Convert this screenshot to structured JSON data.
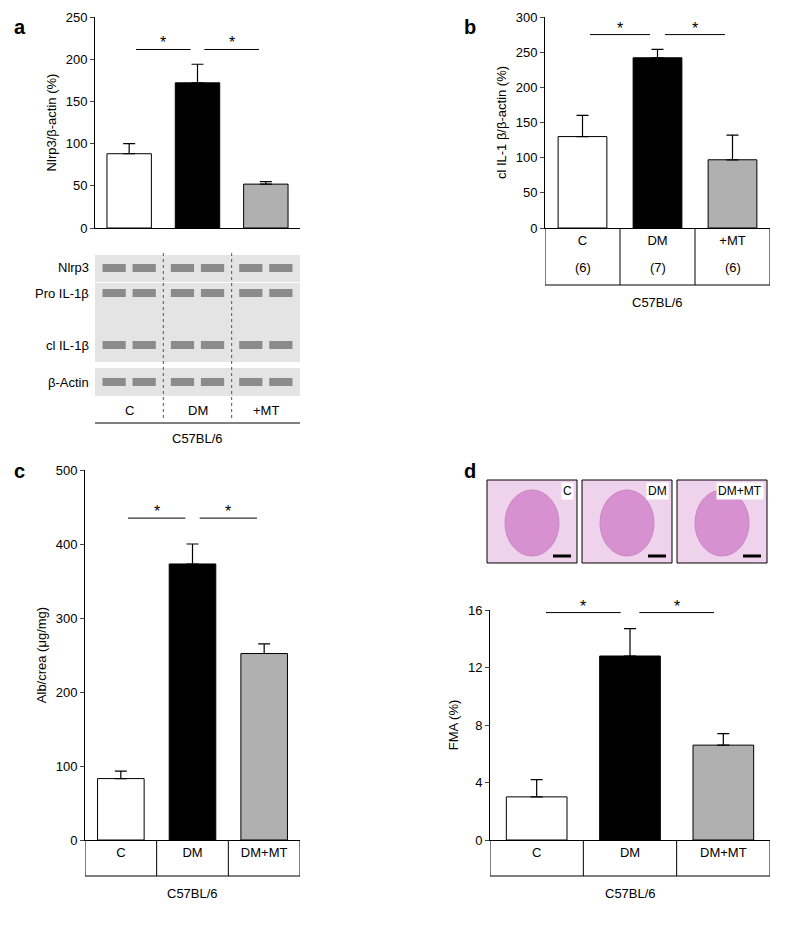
{
  "chart_data": [
    {
      "type": "bar",
      "panel": "a",
      "y_label": "Nlrp3/β-actin (%)",
      "categories": [
        "C",
        "DM",
        "+MT"
      ],
      "values": [
        88,
        172,
        52
      ],
      "errors": [
        12,
        22,
        3
      ],
      "colors": [
        "#ffffff",
        "#000000",
        "#b0b0b0"
      ],
      "ylim": [
        0,
        250
      ],
      "yticks": [
        0,
        50,
        100,
        150,
        200,
        250
      ],
      "blot_labels": [
        "Nlrp3",
        "Pro IL-1β",
        "cl IL-1β",
        "β-Actin"
      ],
      "group_label": "C57BL/6",
      "annotations": [
        {
          "from": 0,
          "to": 1,
          "label": "*"
        },
        {
          "from": 1,
          "to": 2,
          "label": "*"
        }
      ]
    },
    {
      "type": "bar",
      "panel": "b",
      "y_label": "cl IL-1 β/β-actin (%)",
      "categories": [
        "C",
        "DM",
        "+MT"
      ],
      "values": [
        130,
        242,
        97
      ],
      "errors": [
        30,
        12,
        35
      ],
      "n_labels": [
        "(6)",
        "(7)",
        "(6)"
      ],
      "colors": [
        "#ffffff",
        "#000000",
        "#b0b0b0"
      ],
      "ylim": [
        0,
        300
      ],
      "yticks": [
        0,
        50,
        100,
        150,
        200,
        250,
        300
      ],
      "group_label": "C57BL/6",
      "annotations": [
        {
          "from": 0,
          "to": 1,
          "label": "*"
        },
        {
          "from": 1,
          "to": 2,
          "label": "*"
        }
      ]
    },
    {
      "type": "bar",
      "panel": "c",
      "y_label": "Alb/crea (μg/mg)",
      "categories": [
        "C",
        "DM",
        "DM+MT"
      ],
      "values": [
        83,
        373,
        252
      ],
      "errors": [
        10,
        27,
        13
      ],
      "colors": [
        "#ffffff",
        "#000000",
        "#b0b0b0"
      ],
      "ylim": [
        0,
        500
      ],
      "yticks": [
        0,
        100,
        200,
        300,
        400,
        500
      ],
      "group_label": "C57BL/6",
      "annotations": [
        {
          "from": 0,
          "to": 1,
          "label": "*"
        },
        {
          "from": 1,
          "to": 2,
          "label": "*"
        }
      ]
    },
    {
      "type": "bar",
      "panel": "d",
      "y_label": "FMA (%)",
      "categories": [
        "C",
        "DM",
        "DM+MT"
      ],
      "values": [
        3,
        12.8,
        6.6
      ],
      "errors": [
        1.2,
        1.9,
        0.8
      ],
      "colors": [
        "#ffffff",
        "#000000",
        "#b0b0b0"
      ],
      "ylim": [
        0,
        16
      ],
      "yticks": [
        0,
        4,
        8,
        12,
        16
      ],
      "image_labels": [
        "C",
        "DM",
        "DM+MT"
      ],
      "group_label": "C57BL/6",
      "annotations": [
        {
          "from": 0,
          "to": 1,
          "label": "*"
        },
        {
          "from": 1,
          "to": 2,
          "label": "*"
        }
      ]
    }
  ]
}
